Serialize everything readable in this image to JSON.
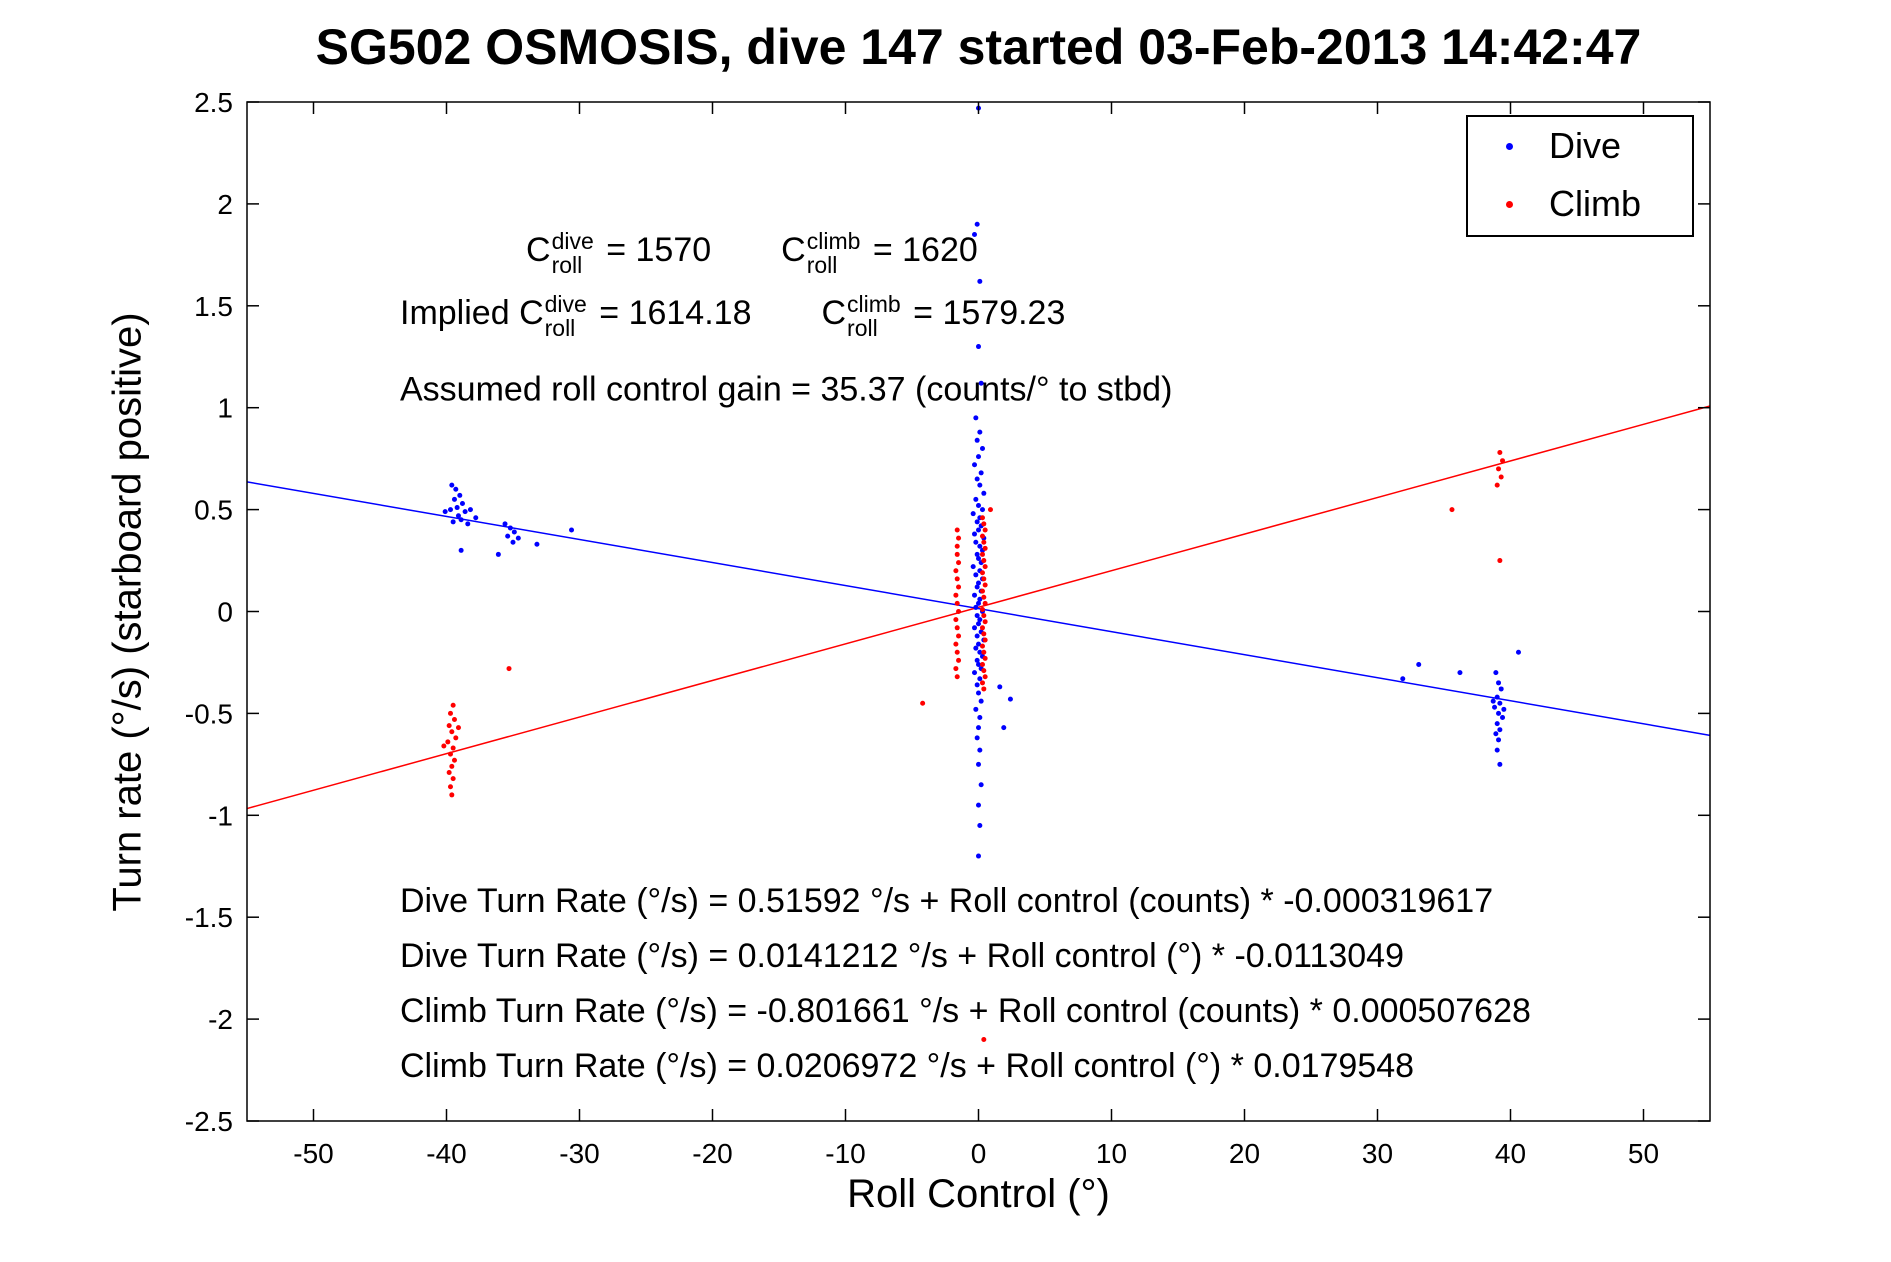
{
  "title": "SG502 OSMOSIS, dive 147 started 03-Feb-2013 14:42:47",
  "chart_data": {
    "type": "scatter",
    "title": "SG502 OSMOSIS, dive 147 started 03-Feb-2013 14:42:47",
    "xlabel": "Roll Control (°)",
    "ylabel": "Turn rate (°/s) (starboard positive)",
    "xlim": [
      -55,
      55
    ],
    "ylim": [
      -2.5,
      2.5
    ],
    "x_ticks": [
      -50,
      -40,
      -30,
      -20,
      -10,
      0,
      10,
      20,
      30,
      40,
      50
    ],
    "y_ticks": [
      -2.5,
      -2,
      -1.5,
      -1,
      -0.5,
      0,
      0.5,
      1,
      1.5,
      2,
      2.5
    ],
    "grid": false,
    "legend_position": "top-right",
    "series": [
      {
        "name": "Dive",
        "color": "#0000ff",
        "marker": "dot",
        "points": [
          [
            -39.6,
            0.62
          ],
          [
            -39.3,
            0.6
          ],
          [
            -39.0,
            0.57
          ],
          [
            -39.4,
            0.55
          ],
          [
            -38.8,
            0.53
          ],
          [
            -39.2,
            0.51
          ],
          [
            -39.7,
            0.5
          ],
          [
            -38.6,
            0.49
          ],
          [
            -39.1,
            0.47
          ],
          [
            -38.9,
            0.45
          ],
          [
            -39.5,
            0.44
          ],
          [
            -38.4,
            0.43
          ],
          [
            -40.1,
            0.49
          ],
          [
            -38.2,
            0.5
          ],
          [
            -37.8,
            0.46
          ],
          [
            -35.6,
            0.43
          ],
          [
            -35.2,
            0.41
          ],
          [
            -34.9,
            0.39
          ],
          [
            -35.4,
            0.37
          ],
          [
            -34.6,
            0.36
          ],
          [
            -35.0,
            0.34
          ],
          [
            -33.2,
            0.33
          ],
          [
            -36.1,
            0.28
          ],
          [
            -38.9,
            0.3
          ],
          [
            -30.6,
            0.4
          ],
          [
            0.0,
            2.47
          ],
          [
            -0.1,
            1.9
          ],
          [
            -0.3,
            1.85
          ],
          [
            0.1,
            1.62
          ],
          [
            0.0,
            1.3
          ],
          [
            0.2,
            1.12
          ],
          [
            -0.2,
            0.95
          ],
          [
            0.1,
            0.88
          ],
          [
            -0.1,
            0.84
          ],
          [
            0.3,
            0.8
          ],
          [
            0.0,
            0.76
          ],
          [
            -0.3,
            0.72
          ],
          [
            0.2,
            0.68
          ],
          [
            -0.1,
            0.65
          ],
          [
            0.1,
            0.62
          ],
          [
            0.4,
            0.58
          ],
          [
            -0.2,
            0.55
          ],
          [
            0.0,
            0.52
          ],
          [
            0.3,
            0.5
          ],
          [
            -0.4,
            0.48
          ],
          [
            0.1,
            0.46
          ],
          [
            -0.1,
            0.44
          ],
          [
            0.2,
            0.42
          ],
          [
            0.0,
            0.4
          ],
          [
            -0.3,
            0.38
          ],
          [
            0.4,
            0.36
          ],
          [
            -0.2,
            0.34
          ],
          [
            0.1,
            0.32
          ],
          [
            0.3,
            0.3
          ],
          [
            -0.1,
            0.28
          ],
          [
            0.0,
            0.26
          ],
          [
            0.2,
            0.24
          ],
          [
            -0.4,
            0.22
          ],
          [
            0.1,
            0.2
          ],
          [
            -0.2,
            0.18
          ],
          [
            0.3,
            0.16
          ],
          [
            0.0,
            0.14
          ],
          [
            -0.1,
            0.12
          ],
          [
            0.2,
            0.1
          ],
          [
            -0.3,
            0.08
          ],
          [
            0.1,
            0.06
          ],
          [
            0.0,
            0.04
          ],
          [
            -0.2,
            0.02
          ],
          [
            0.3,
            0.0
          ],
          [
            -0.1,
            -0.02
          ],
          [
            0.1,
            -0.04
          ],
          [
            0.0,
            -0.06
          ],
          [
            -0.3,
            -0.08
          ],
          [
            0.2,
            -0.1
          ],
          [
            -0.1,
            -0.12
          ],
          [
            0.4,
            -0.14
          ],
          [
            0.0,
            -0.16
          ],
          [
            -0.2,
            -0.18
          ],
          [
            0.1,
            -0.2
          ],
          [
            0.3,
            -0.22
          ],
          [
            -0.1,
            -0.24
          ],
          [
            0.0,
            -0.26
          ],
          [
            0.2,
            -0.28
          ],
          [
            -0.3,
            -0.3
          ],
          [
            0.1,
            -0.33
          ],
          [
            -0.1,
            -0.36
          ],
          [
            0.0,
            -0.4
          ],
          [
            0.2,
            -0.44
          ],
          [
            -0.2,
            -0.48
          ],
          [
            0.1,
            -0.52
          ],
          [
            0.0,
            -0.57
          ],
          [
            -0.1,
            -0.62
          ],
          [
            0.1,
            -0.68
          ],
          [
            0.0,
            -0.75
          ],
          [
            0.2,
            -0.85
          ],
          [
            0.0,
            -0.95
          ],
          [
            0.1,
            -1.05
          ],
          [
            0.0,
            -1.2
          ],
          [
            1.6,
            -0.37
          ],
          [
            2.4,
            -0.43
          ],
          [
            1.9,
            -0.57
          ],
          [
            38.9,
            -0.3
          ],
          [
            39.1,
            -0.35
          ],
          [
            39.3,
            -0.38
          ],
          [
            39.0,
            -0.42
          ],
          [
            39.2,
            -0.45
          ],
          [
            38.8,
            -0.47
          ],
          [
            39.1,
            -0.5
          ],
          [
            39.4,
            -0.52
          ],
          [
            39.0,
            -0.55
          ],
          [
            39.2,
            -0.58
          ],
          [
            38.9,
            -0.6
          ],
          [
            39.1,
            -0.63
          ],
          [
            39.0,
            -0.68
          ],
          [
            39.2,
            -0.75
          ],
          [
            38.7,
            -0.44
          ],
          [
            39.5,
            -0.48
          ],
          [
            33.1,
            -0.26
          ],
          [
            36.2,
            -0.3
          ],
          [
            40.6,
            -0.2
          ],
          [
            31.9,
            -0.33
          ]
        ]
      },
      {
        "name": "Climb",
        "color": "#ff0000",
        "marker": "dot",
        "points": [
          [
            -39.5,
            -0.46
          ],
          [
            -39.7,
            -0.5
          ],
          [
            -39.4,
            -0.53
          ],
          [
            -39.8,
            -0.56
          ],
          [
            -39.6,
            -0.59
          ],
          [
            -39.3,
            -0.62
          ],
          [
            -39.9,
            -0.64
          ],
          [
            -39.5,
            -0.67
          ],
          [
            -39.7,
            -0.7
          ],
          [
            -39.4,
            -0.73
          ],
          [
            -39.6,
            -0.76
          ],
          [
            -39.8,
            -0.79
          ],
          [
            -39.5,
            -0.82
          ],
          [
            -39.7,
            -0.86
          ],
          [
            -39.6,
            -0.9
          ],
          [
            -40.2,
            -0.66
          ],
          [
            -39.1,
            -0.57
          ],
          [
            -35.3,
            -0.28
          ],
          [
            -4.2,
            -0.45
          ],
          [
            -1.6,
            -0.32
          ],
          [
            -1.7,
            -0.28
          ],
          [
            -1.5,
            -0.24
          ],
          [
            -1.6,
            -0.2
          ],
          [
            -1.7,
            -0.16
          ],
          [
            -1.5,
            -0.12
          ],
          [
            -1.6,
            -0.08
          ],
          [
            -1.7,
            -0.04
          ],
          [
            -1.5,
            0.0
          ],
          [
            -1.6,
            0.04
          ],
          [
            -1.7,
            0.08
          ],
          [
            -1.5,
            0.12
          ],
          [
            -1.6,
            0.16
          ],
          [
            -1.7,
            0.2
          ],
          [
            -1.5,
            0.24
          ],
          [
            -1.6,
            0.28
          ],
          [
            -1.6,
            0.32
          ],
          [
            -1.5,
            0.36
          ],
          [
            -1.6,
            0.4
          ],
          [
            0.4,
            -0.38
          ],
          [
            0.3,
            -0.35
          ],
          [
            0.5,
            -0.32
          ],
          [
            0.4,
            -0.29
          ],
          [
            0.3,
            -0.26
          ],
          [
            0.5,
            -0.23
          ],
          [
            0.4,
            -0.2
          ],
          [
            0.3,
            -0.17
          ],
          [
            0.5,
            -0.14
          ],
          [
            0.4,
            -0.11
          ],
          [
            0.3,
            -0.08
          ],
          [
            0.5,
            -0.05
          ],
          [
            0.4,
            -0.02
          ],
          [
            0.3,
            0.01
          ],
          [
            0.5,
            0.04
          ],
          [
            0.4,
            0.07
          ],
          [
            0.3,
            0.1
          ],
          [
            0.5,
            0.13
          ],
          [
            0.4,
            0.16
          ],
          [
            0.3,
            0.19
          ],
          [
            0.5,
            0.22
          ],
          [
            0.4,
            0.25
          ],
          [
            0.3,
            0.28
          ],
          [
            0.5,
            0.31
          ],
          [
            0.4,
            0.34
          ],
          [
            0.3,
            0.37
          ],
          [
            0.5,
            0.4
          ],
          [
            0.4,
            0.43
          ],
          [
            0.3,
            0.46
          ],
          [
            0.4,
            -2.1
          ],
          [
            0.9,
            0.5
          ],
          [
            39.2,
            0.78
          ],
          [
            39.4,
            0.74
          ],
          [
            39.1,
            0.7
          ],
          [
            39.3,
            0.66
          ],
          [
            39.0,
            0.62
          ],
          [
            39.2,
            0.25
          ],
          [
            35.6,
            0.5
          ]
        ]
      }
    ],
    "fit_lines": [
      {
        "name": "dive-fit-line",
        "color": "#0000ff",
        "intercept": 0.0141212,
        "slope": -0.0113049
      },
      {
        "name": "climb-fit-line",
        "color": "#ff0000",
        "intercept": 0.0206972,
        "slope": 0.0179548
      }
    ]
  },
  "annotations": {
    "row1": {
      "c1": {
        "base": "C",
        "sup": "dive",
        "sub": "roll",
        "rest": " = 1570"
      },
      "c2": {
        "base": "C",
        "sup": "climb",
        "sub": "roll",
        "rest": " = 1620"
      }
    },
    "row2": {
      "prefix": "Implied ",
      "c1": {
        "base": "C",
        "sup": "dive",
        "sub": "roll",
        "rest": " = 1614.18"
      },
      "c2": {
        "base": "C",
        "sup": "climb",
        "sub": "roll",
        "rest": " = 1579.23"
      }
    },
    "row3": "Assumed roll control gain = 35.37 (counts/° to stbd)",
    "equations": [
      "Dive Turn Rate (°/s) = 0.51592 °/s + Roll control (counts) * -0.000319617",
      "Dive Turn Rate (°/s) = 0.0141212 °/s + Roll control (°) * -0.0113049",
      "Climb Turn Rate (°/s) = -0.801661 °/s + Roll control (counts) * 0.000507628",
      "Climb Turn Rate (°/s) = 0.0206972 °/s + Roll control (°) * 0.0179548"
    ]
  },
  "legend": {
    "items": [
      {
        "label": "Dive",
        "color": "#0000ff"
      },
      {
        "label": "Climb",
        "color": "#ff0000"
      }
    ]
  }
}
